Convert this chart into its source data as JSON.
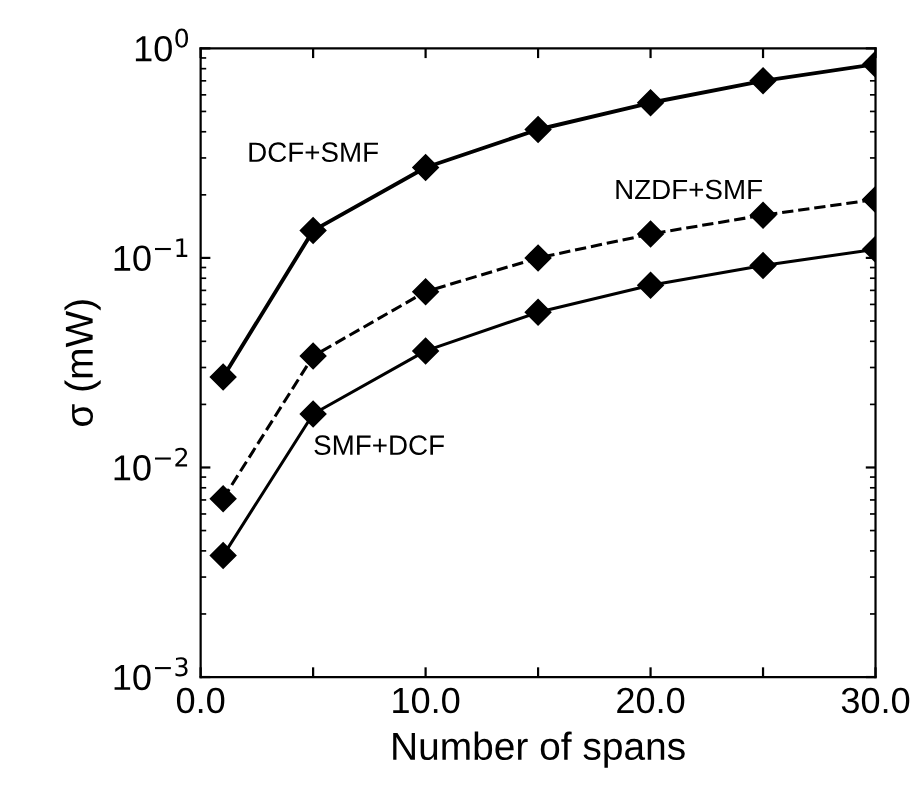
{
  "chart_data": {
    "type": "line",
    "xlabel": "Number of spans",
    "ylabel": "σ (mW)",
    "x": [
      1,
      5,
      10,
      15,
      20,
      25,
      30
    ],
    "series": [
      {
        "name": "DCF+SMF",
        "color": "#000000",
        "line_style": "solid",
        "values": [
          0.027,
          0.135,
          0.27,
          0.41,
          0.55,
          0.7,
          0.84
        ]
      },
      {
        "name": "NZDF+SMF",
        "color": "#000000",
        "line_style": "dashed",
        "values": [
          0.0071,
          0.034,
          0.069,
          0.1,
          0.13,
          0.16,
          0.19
        ]
      },
      {
        "name": "SMF+DCF",
        "color": "#000000",
        "line_style": "solid",
        "values": [
          0.0038,
          0.018,
          0.036,
          0.055,
          0.074,
          0.092,
          0.11
        ]
      }
    ],
    "marker": "diamond",
    "log": "y",
    "grid": false,
    "legend": false,
    "xlim": [
      0,
      30
    ],
    "ylim": [
      0.001,
      1
    ],
    "xticks": [
      {
        "value": 0,
        "label": "0.0"
      },
      {
        "value": 5,
        "label": null
      },
      {
        "value": 10,
        "label": "10.0"
      },
      {
        "value": 15,
        "label": null
      },
      {
        "value": 20,
        "label": "20.0"
      },
      {
        "value": 25,
        "label": null
      },
      {
        "value": 30,
        "label": "30.0"
      }
    ],
    "yticks": [
      {
        "value": 0.001,
        "label": "10$^{−3}$"
      },
      {
        "value": 0.01,
        "label": "10$^{−2}$"
      },
      {
        "value": 0.1,
        "label": "10$^{−1}$"
      },
      {
        "value": 1,
        "label": "10$^{0}$"
      }
    ]
  }
}
